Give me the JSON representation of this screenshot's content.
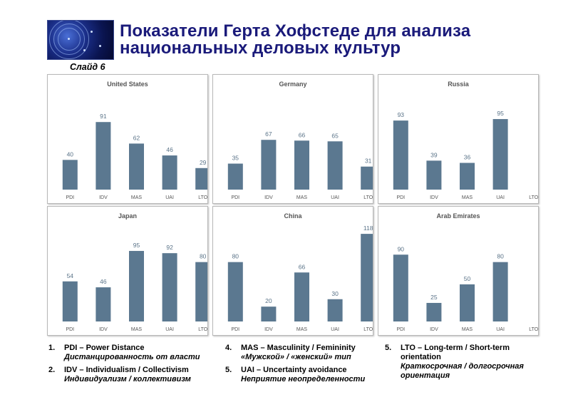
{
  "header": {
    "title_line1": "Показатели Герта Хофстеде для анализа",
    "title_line2": "национальных деловых культур",
    "slide_label": "Слайд 6"
  },
  "colors": {
    "bar": "#5b7890",
    "title": "#1a1a7a"
  },
  "chart_data": [
    {
      "type": "bar",
      "title": "United States",
      "categories": [
        "PDI",
        "IDV",
        "MAS",
        "UAI",
        "LTO"
      ],
      "values": [
        40,
        91,
        62,
        46,
        29
      ],
      "ylim": [
        0,
        120
      ]
    },
    {
      "type": "bar",
      "title": "Germany",
      "categories": [
        "PDI",
        "IDV",
        "MAS",
        "UAI",
        "LTO"
      ],
      "values": [
        35,
        67,
        66,
        65,
        31
      ],
      "ylim": [
        0,
        120
      ]
    },
    {
      "type": "bar",
      "title": "Russia",
      "categories": [
        "PDI",
        "IDV",
        "MAS",
        "UAI",
        "LTO"
      ],
      "values": [
        93,
        39,
        36,
        95,
        null
      ],
      "ylim": [
        0,
        120
      ]
    },
    {
      "type": "bar",
      "title": "Japan",
      "categories": [
        "PDI",
        "IDV",
        "MAS",
        "UAI",
        "LTO"
      ],
      "values": [
        54,
        46,
        95,
        92,
        80
      ],
      "ylim": [
        0,
        120
      ]
    },
    {
      "type": "bar",
      "title": "China",
      "categories": [
        "PDI",
        "IDV",
        "MAS",
        "UAI",
        "LTO"
      ],
      "values": [
        80,
        20,
        66,
        30,
        118
      ],
      "ylim": [
        0,
        120
      ]
    },
    {
      "type": "bar",
      "title": "Arab Emirates",
      "categories": [
        "PDI",
        "IDV",
        "MAS",
        "UAI",
        "LTO"
      ],
      "values": [
        90,
        25,
        50,
        80,
        null
      ],
      "ylim": [
        0,
        120
      ]
    }
  ],
  "legend": [
    {
      "num": "1.",
      "en": "PDI – Power Distance",
      "ru": "Дистанцированность от власти"
    },
    {
      "num": "2.",
      "en": "IDV – Individualism / Collectivism",
      "ru": "Индивидуализм / коллективизм"
    },
    {
      "num": "4.",
      "en": "MAS – Masculinity / Femininity",
      "ru": "«Мужской» / «женский» тип"
    },
    {
      "num": "5.",
      "en": "UAI – Uncertainty avoidance",
      "ru": "Неприятие неопределенности"
    },
    {
      "num": "5.",
      "en": "LTO – Long-term / Short-term orientation",
      "ru": "Краткосрочная / долгосрочная ориентация"
    }
  ]
}
